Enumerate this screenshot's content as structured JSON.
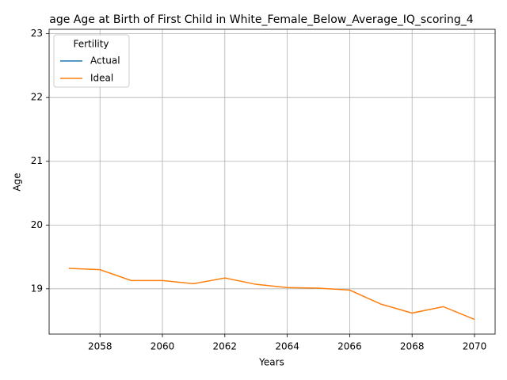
{
  "chart_data": {
    "type": "line",
    "title": "age Age at Birth of First Child in White_Female_Below_Average_IQ_scoring_4",
    "x_label": "Years",
    "y_label": "Age",
    "x": [
      2057,
      2058,
      2059,
      2060,
      2061,
      2062,
      2063,
      2064,
      2065,
      2066,
      2067,
      2068,
      2069,
      2070
    ],
    "series": [
      {
        "name": "Actual",
        "color": "#1f77b4",
        "values": [
          null,
          null,
          null,
          null,
          null,
          null,
          null,
          null,
          null,
          null,
          null,
          null,
          null,
          null
        ]
      },
      {
        "name": "Ideal",
        "color": "#ff7f0e",
        "values": [
          19.32,
          19.3,
          19.13,
          19.13,
          19.08,
          19.17,
          19.07,
          19.02,
          19.01,
          18.98,
          18.76,
          18.62,
          18.72,
          18.52
        ]
      }
    ],
    "legend_title": "Fertility",
    "legend": "upper left",
    "xlim": [
      2056.37,
      2070.66
    ],
    "xticks": [
      2058,
      2060,
      2062,
      2064,
      2066,
      2068,
      2070
    ],
    "ylim": [
      18.29,
      23.07
    ],
    "yticks": [
      19,
      20,
      21,
      22,
      23
    ],
    "grid": true
  }
}
